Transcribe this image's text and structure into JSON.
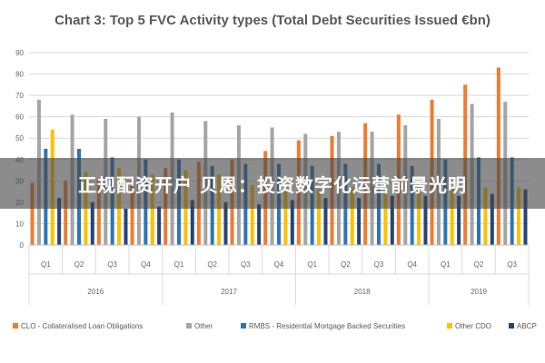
{
  "chart_data": {
    "type": "bar",
    "title": "Chart 3: Top 5 FVC Activity types (Total Debt Securities Issued €bn)",
    "xlabel": "",
    "ylabel": "",
    "ylim": [
      0,
      90
    ],
    "yticks": [
      0,
      10,
      20,
      30,
      40,
      50,
      60,
      70,
      80,
      90
    ],
    "grid": true,
    "legend_position": "bottom",
    "categories": [
      "Q1",
      "Q2",
      "Q3",
      "Q4",
      "Q1",
      "Q2",
      "Q3",
      "Q4",
      "Q1",
      "Q2",
      "Q3",
      "Q4",
      "Q1",
      "Q2",
      "Q3"
    ],
    "groups": [
      {
        "label": "2016",
        "count": 4
      },
      {
        "label": "2017",
        "count": 4
      },
      {
        "label": "2018",
        "count": 4
      },
      {
        "label": "2019",
        "count": 3
      }
    ],
    "series": [
      {
        "name": "CLO - Collateralised Loan Obligations",
        "color": "#ED7D31",
        "values": [
          29,
          30,
          31,
          30,
          36,
          39,
          40,
          44,
          49,
          51,
          57,
          61,
          68,
          75,
          83
        ]
      },
      {
        "name": "Other",
        "color": "#A5A5A5",
        "values": [
          68,
          61,
          59,
          60,
          62,
          58,
          56,
          55,
          52,
          53,
          53,
          56,
          59,
          66,
          67
        ]
      },
      {
        "name": "RMBS - Residential Mortgage Backed Securities",
        "color": "#2E75B6",
        "values": [
          45,
          45,
          41,
          40,
          40,
          37,
          38,
          38,
          37,
          38,
          38,
          37,
          40,
          41,
          41
        ]
      },
      {
        "name": "Other CDO",
        "color": "#FFC000",
        "values": [
          54,
          34,
          36,
          33,
          35,
          33,
          28,
          28,
          26,
          27,
          27,
          27,
          27,
          27,
          27
        ]
      },
      {
        "name": "ABCP",
        "color": "#264478",
        "values": [
          22,
          20,
          17,
          18,
          21,
          20,
          19,
          21,
          22,
          22,
          23,
          23,
          23,
          24,
          26
        ]
      }
    ]
  },
  "banner": {
    "text": "正规配资开户   贝恩：投资数字化运营前景光明"
  }
}
